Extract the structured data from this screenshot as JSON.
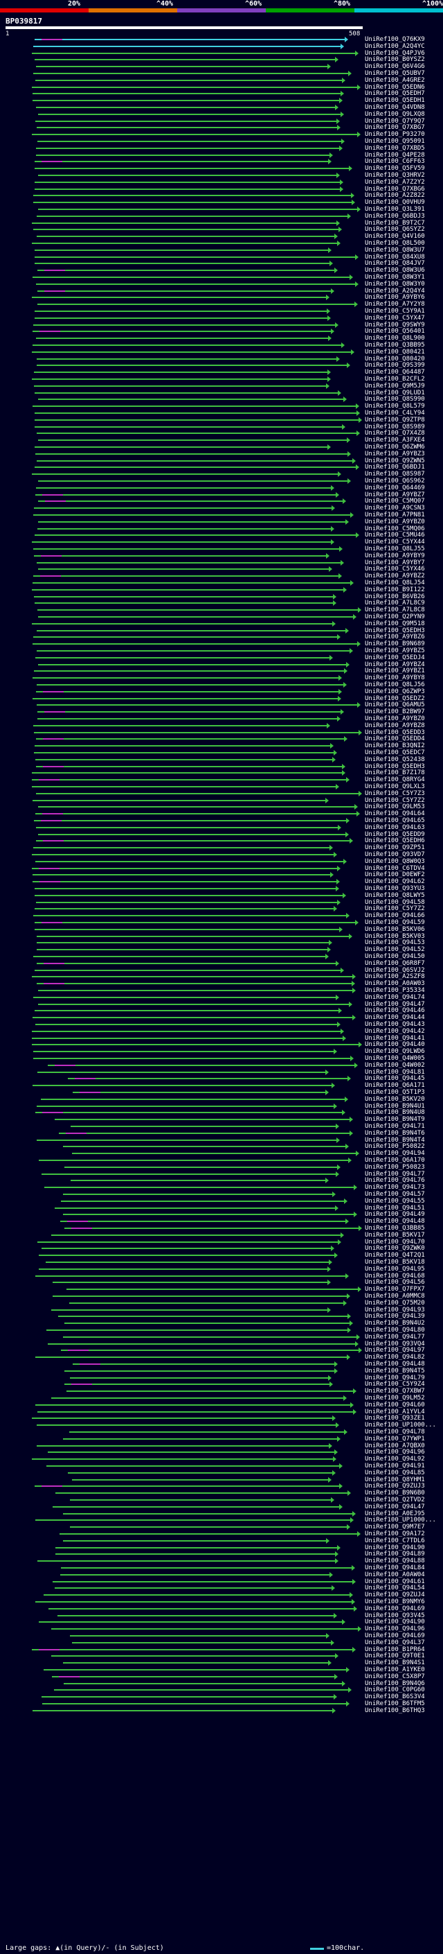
{
  "scale": {
    "labels": [
      "20%",
      "^40%",
      "^60%",
      "^80%",
      "^100%"
    ],
    "colors": [
      "#e00000",
      "#e07000",
      "#8040c0",
      "#00a000",
      "#00c0d0"
    ]
  },
  "query": {
    "id": "BP039817",
    "start": "1",
    "end": "508"
  },
  "legend": {
    "left_text": "Large gaps: ▲(in Query)/- (in Subject)",
    "right_text": "=100char."
  },
  "colors": {
    "hit": "#40c040",
    "cyan": "#40d0e0",
    "gap": "#c030c0",
    "white": "#ffffff"
  },
  "hits": [
    "UniRef100_Q76KX9",
    "UniRef100_A2Q4YC",
    "UniRef100_Q4PJV6",
    "UniRef100_B0YSZ2",
    "UniRef100_Q6V4G6",
    "UniRef100_Q5UBV7",
    "UniRef100_A4GRE2",
    "UniRef100_Q5EDN6",
    "UniRef100_Q5EDH7",
    "UniRef100_Q5EDH1",
    "UniRef100_Q4VDN8",
    "UniRef100_Q9LXQ8",
    "UniRef100_Q7Y9Q7",
    "UniRef100_Q7XBG7",
    "UniRef100_P93270",
    "UniRef100_Q95091",
    "UniRef100_Q7XBD5",
    "UniRef100_Q4PE28",
    "UniRef100_C6FF63",
    "UniRef100_Q5FV59",
    "UniRef100_Q3HRV2",
    "UniRef100_A7Z2Y2",
    "UniRef100_Q7XBG6",
    "UniRef100_A2Z822",
    "UniRef100_Q0VHU9",
    "UniRef100_Q3L391",
    "UniRef100_Q6BDJ3",
    "UniRef100_B9T2C7",
    "UniRef100_Q6SYZ2",
    "UniRef100_Q4V160",
    "UniRef100_Q8L500",
    "UniRef100_Q8W3U7",
    "UniRef100_Q84XU8",
    "UniRef100_Q84JV7",
    "UniRef100_Q8W3U6",
    "UniRef100_Q8W3Y1",
    "UniRef100_Q8W3Y0",
    "UniRef100_A2Q4Y4",
    "UniRef100_A9YBY6",
    "UniRef100_A7Y2Y8",
    "UniRef100_C5Y9A1",
    "UniRef100_C5YX47",
    "UniRef100_Q9SWY9",
    "UniRef100_Q56401",
    "UniRef100_Q8L900",
    "UniRef100_Q3BB95",
    "UniRef100_Q80421",
    "UniRef100_Q80420",
    "UniRef100_Q9S399",
    "UniRef100_Q64487",
    "UniRef100_B2CFL2",
    "UniRef100_Q9M5J9",
    "UniRef100_Q9LUD1",
    "UniRef100_Q8S990",
    "UniRef100_Q8L579",
    "UniRef100_C4LY94",
    "UniRef100_Q9ZTP8",
    "UniRef100_Q8S989",
    "UniRef100_Q7X4Z8",
    "UniRef100_A3FXE4",
    "UniRef100_Q6ZWM6",
    "UniRef100_A9YBZ3",
    "UniRef100_Q9ZWN5",
    "UniRef100_Q6BDJ1",
    "UniRef100_Q8S987",
    "UniRef100_Q6S962",
    "UniRef100_Q64469",
    "UniRef100_A9YBZ7",
    "UniRef100_C5MQ07",
    "UniRef100_A9CSN3",
    "UniRef100_A7PN81",
    "UniRef100_A9YBZ0",
    "UniRef100_C5MQ06",
    "UniRef100_C5MU46",
    "UniRef100_C5YX44",
    "UniRef100_Q8LJ55",
    "UniRef100_A9YBY9",
    "UniRef100_A9YBY7",
    "UniRef100_C5YX46",
    "UniRef100_A9YBZ2",
    "UniRef100_Q8LJ54",
    "UniRef100_B9I122",
    "UniRef100_B6VB26",
    "UniRef100_A7L8C9",
    "UniRef100_A7L8C8",
    "UniRef100_Q2PYN9",
    "UniRef100_Q9M518",
    "UniRef100_Q5EDH3",
    "UniRef100_A9YBZ6",
    "UniRef100_B9N689",
    "UniRef100_A9YBZ5",
    "UniRef100_Q5EDJ4",
    "UniRef100_A9YBZ4",
    "UniRef100_A9YBZ1",
    "UniRef100_A9YBY8",
    "UniRef100_Q8LJ56",
    "UniRef100_Q6ZWP3",
    "UniRef100_Q5EDZ2",
    "UniRef100_Q6AMU5",
    "UniRef100_B2BW97",
    "UniRef100_A9YBZ0",
    "UniRef100_A9YBZ8",
    "UniRef100_Q5EDD3",
    "UniRef100_Q5EDD4",
    "UniRef100_B3QNI2",
    "UniRef100_Q5EDC7",
    "UniRef100_Q52438",
    "UniRef100_Q5EDH3",
    "UniRef100_B7Z178",
    "UniRef100_Q8RYG4",
    "UniRef100_Q9LXL3",
    "UniRef100_C5Y7Z3",
    "UniRef100_C5Y7Z2",
    "UniRef100_Q9LM53",
    "UniRef100_Q94L64",
    "UniRef100_Q94L65",
    "UniRef100_Q94L63",
    "UniRef100_Q5EDD9",
    "UniRef100_Q5EDH6",
    "UniRef100_Q9ZP51",
    "UniRef100_Q93VD7",
    "UniRef100_Q8W0Q3",
    "UniRef100_C6TDV4",
    "UniRef100_D0EWF2",
    "UniRef100_Q94L62",
    "UniRef100_Q93YU3",
    "UniRef100_Q8LWY5",
    "UniRef100_Q94L58",
    "UniRef100_C5Y7Z2",
    "UniRef100_Q94L66",
    "UniRef100_Q94L59",
    "UniRef100_B5KV06",
    "UniRef100_B5KV03",
    "UniRef100_Q94L53",
    "UniRef100_Q94L52",
    "UniRef100_Q94L50",
    "UniRef100_Q6R8F7",
    "UniRef100_Q6SVJ2",
    "UniRef100_A2SZF8",
    "UniRef100_A0AW03",
    "UniRef100_P35334",
    "UniRef100_Q94L74",
    "UniRef100_Q94L47",
    "UniRef100_Q94L46",
    "UniRef100_Q94L44",
    "UniRef100_Q94L43",
    "UniRef100_Q94L42",
    "UniRef100_Q94L41",
    "UniRef100_Q94L40",
    "UniRef100_Q9LWD6",
    "UniRef100_Q4W005",
    "UniRef100_Q4W002",
    "UniRef100_Q94L81",
    "UniRef100_Q94L45",
    "UniRef100_Q6A171",
    "UniRef100_Q5T1P3",
    "UniRef100_B5KV20",
    "UniRef100_B9N4U1",
    "UniRef100_B9N4U8",
    "UniRef100_B9N4T9",
    "UniRef100_Q94L71",
    "UniRef100_B9N4T6",
    "UniRef100_B9N4T4",
    "UniRef100_P50822",
    "UniRef100_Q94L94",
    "UniRef100_Q6A170",
    "UniRef100_P50823",
    "UniRef100_Q94L77",
    "UniRef100_Q94L76",
    "UniRef100_Q94L73",
    "UniRef100_Q94L57",
    "UniRef100_Q94L55",
    "UniRef100_Q94L51",
    "UniRef100_Q94L49",
    "UniRef100_Q94L48",
    "UniRef100_Q3BB85",
    "UniRef100_B5KV17",
    "UniRef100_Q94L70",
    "UniRef100_Q9ZWK0",
    "UniRef100_Q4T2Q1",
    "UniRef100_B5KV18",
    "UniRef100_Q94L95",
    "UniRef100_Q94L68",
    "UniRef100_Q94L56",
    "UniRef100_Q7FPX7",
    "UniRef100_A0MMC8",
    "UniRef100_Q75M20",
    "UniRef100_Q94L93",
    "UniRef100_Q94L39",
    "UniRef100_B9N4U2",
    "UniRef100_Q94L80",
    "UniRef100_Q94L77",
    "UniRef100_Q93VQ4",
    "UniRef100_Q94L97",
    "UniRef100_Q94L82",
    "UniRef100_Q94L48",
    "UniRef100_B9N4T5",
    "UniRef100_Q94L79",
    "UniRef100_C5Y9Z4",
    "UniRef100_Q7XBW7",
    "UniRef100_Q9LM52",
    "UniRef100_Q94L60",
    "UniRef100_A1YVL4",
    "UniRef100_Q93ZE1",
    "UniRef100_UP1000...",
    "UniRef100_Q94L78",
    "UniRef100_Q7YWP1",
    "UniRef100_A7QBX0",
    "UniRef100_Q94L96",
    "UniRef100_Q94L92",
    "UniRef100_Q94L91",
    "UniRef100_Q94L85",
    "UniRef100_Q8YHM1",
    "UniRef100_Q9ZUJ3",
    "UniRef100_B9N6B0",
    "UniRef100_Q2TVD2",
    "UniRef100_Q94L47",
    "UniRef100_A0EJ95",
    "UniRef100_UP1000...",
    "UniRef100_Q9M7E7",
    "UniRef100_Q9A172",
    "UniRef100_C7TDL6",
    "UniRef100_Q94L90",
    "UniRef100_Q94L89",
    "UniRef100_Q94L88",
    "UniRef100_Q94L84",
    "UniRef100_A0AW04",
    "UniRef100_Q94L61",
    "UniRef100_Q94L54",
    "UniRef100_Q9ZUJ4",
    "UniRef100_B9NMY6",
    "UniRef100_Q94L69",
    "UniRef100_Q93V45",
    "UniRef100_Q94L90",
    "UniRef100_Q94L96",
    "UniRef100_Q94L69",
    "UniRef100_Q94L37",
    "UniRef100_B1PR64",
    "UniRef100_Q9T0E1",
    "UniRef100_B9N4S1",
    "UniRef100_A1YKE0",
    "UniRef100_C5X8P7",
    "UniRef100_B9N4Q6",
    "UniRef100_C0PG60",
    "UniRef100_B6S3V4",
    "UniRef100_B6TFM5",
    "UniRef100_B6THQ3"
  ]
}
